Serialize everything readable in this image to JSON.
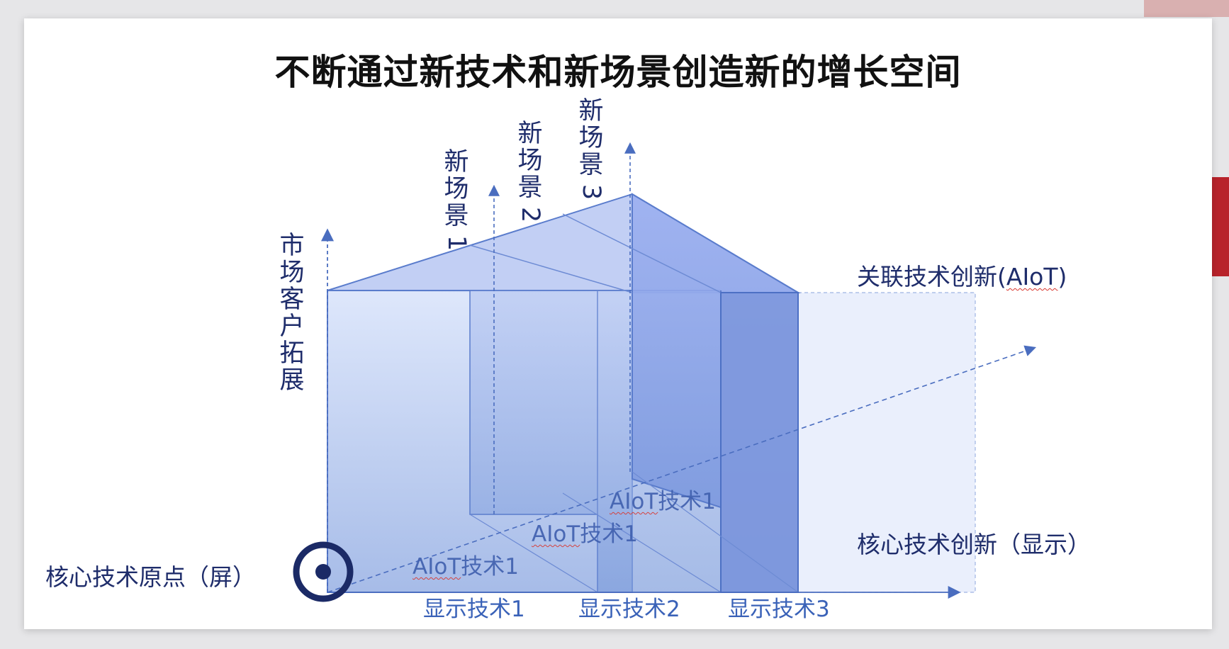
{
  "title": "不断通过新技术和新场景创造新的增长空间",
  "origin_label": "核心技术原点（屏）",
  "y_axis_label_chars": [
    "市",
    "场",
    "客",
    "户",
    "拓",
    "展"
  ],
  "scenes": [
    {
      "chars": [
        "新",
        "场",
        "景"
      ],
      "num": "1"
    },
    {
      "chars": [
        "新",
        "场",
        "景"
      ],
      "num": "2"
    },
    {
      "chars": [
        "新",
        "场",
        "景"
      ],
      "num": "3"
    }
  ],
  "right_labels": {
    "aiot_axis_prefix": "关联技术创新(",
    "aiot_axis_word": "AIoT",
    "aiot_axis_suffix": ")",
    "core_axis": "核心技术创新（显示）"
  },
  "display_techs": [
    "显示技术1",
    "显示技术2",
    "显示技术3"
  ],
  "aiot_techs": [
    {
      "word": "AIoT",
      "rest": "技术1"
    },
    {
      "word": "AIoT",
      "rest": "技术1"
    },
    {
      "word": "AIoT",
      "rest": "技术1"
    }
  ],
  "colors": {
    "label_navy": "#1f2d6b",
    "tech_blue": "#3a62b8",
    "box_blue": "#6f8fd8",
    "deco_red": "#b8232b"
  }
}
